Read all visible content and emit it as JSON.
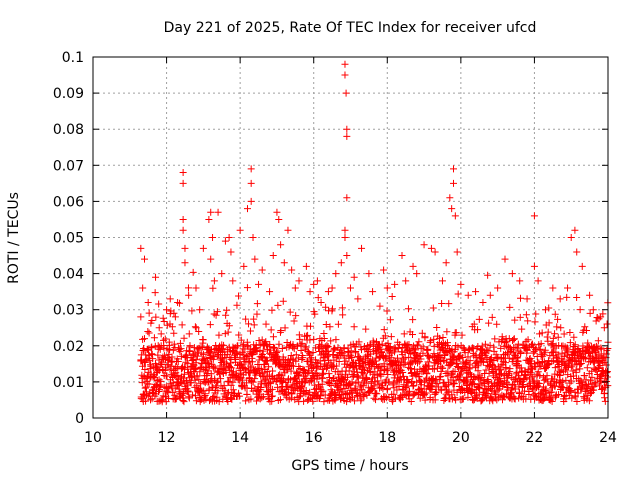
{
  "chart_data": {
    "type": "scatter",
    "title": "Day 221 of 2025, Rate Of TEC Index for receiver ufcd",
    "xlabel": "GPS time / hours",
    "ylabel": "ROTI / TECUs",
    "xlim": [
      10,
      24
    ],
    "ylim": [
      0,
      0.1
    ],
    "grid": true,
    "marker": "+",
    "color": "#ff0000",
    "xticks": [
      10,
      12,
      14,
      16,
      18,
      20,
      22,
      24
    ],
    "xtick_labels": [
      "10",
      "12",
      "14",
      "16",
      "18",
      "20",
      "22",
      "24"
    ],
    "yticks": [
      0,
      0.01,
      0.02,
      0.03,
      0.04,
      0.05,
      0.06,
      0.07,
      0.08,
      0.09,
      0.1
    ],
    "ytick_labels": [
      "0",
      "0.01",
      "0.02",
      "0.03",
      "0.04",
      "0.05",
      "0.06",
      "0.07",
      "0.08",
      "0.09",
      "0.1"
    ],
    "data_range": {
      "x_start": 11.3,
      "x_end": 24.0
    },
    "series": [
      {
        "name": "ROTI",
        "x": [
          11.3,
          11.3,
          11.35,
          11.4,
          11.4,
          11.5,
          11.6,
          11.7,
          11.8,
          12.0,
          12.1,
          12.2,
          12.3,
          12.45,
          12.45,
          12.45,
          12.45,
          12.5,
          12.5,
          12.6,
          12.8,
          12.9,
          13.0,
          13.15,
          13.2,
          13.2,
          13.25,
          13.3,
          13.4,
          13.5,
          13.6,
          13.7,
          13.75,
          13.8,
          14.0,
          14.1,
          14.2,
          14.3,
          14.3,
          14.3,
          14.35,
          14.4,
          14.5,
          14.6,
          14.8,
          14.9,
          15.0,
          15.05,
          15.1,
          15.2,
          15.3,
          15.4,
          15.5,
          15.6,
          15.8,
          15.9,
          16.0,
          16.1,
          16.2,
          16.4,
          16.5,
          16.6,
          16.75,
          16.85,
          16.85,
          16.88,
          16.9,
          16.9,
          16.9,
          16.85,
          16.85,
          16.9,
          17.0,
          17.1,
          17.2,
          17.3,
          17.5,
          17.6,
          17.8,
          17.9,
          18.0,
          18.2,
          18.4,
          18.5,
          18.7,
          18.8,
          19.0,
          19.2,
          19.3,
          19.5,
          19.6,
          19.7,
          19.75,
          19.8,
          19.8,
          19.85,
          19.9,
          20.0,
          20.2,
          20.4,
          20.6,
          20.8,
          21.0,
          21.2,
          21.4,
          21.6,
          21.8,
          22.0,
          22.0,
          22.1,
          22.3,
          22.5,
          22.7,
          22.9,
          23.0,
          23.1,
          23.15,
          23.3,
          23.5,
          23.6,
          23.8,
          23.9,
          24.0
        ],
        "y": [
          0.047,
          0.028,
          0.036,
          0.044,
          0.022,
          0.032,
          0.027,
          0.039,
          0.025,
          0.03,
          0.033,
          0.029,
          0.032,
          0.068,
          0.065,
          0.055,
          0.052,
          0.047,
          0.043,
          0.034,
          0.036,
          0.03,
          0.047,
          0.055,
          0.057,
          0.044,
          0.05,
          0.038,
          0.057,
          0.04,
          0.049,
          0.05,
          0.046,
          0.038,
          0.052,
          0.042,
          0.058,
          0.069,
          0.065,
          0.06,
          0.05,
          0.044,
          0.037,
          0.041,
          0.035,
          0.045,
          0.057,
          0.055,
          0.048,
          0.043,
          0.052,
          0.041,
          0.036,
          0.038,
          0.042,
          0.035,
          0.037,
          0.038,
          0.032,
          0.035,
          0.036,
          0.04,
          0.043,
          0.098,
          0.095,
          0.09,
          0.08,
          0.078,
          0.061,
          0.052,
          0.05,
          0.045,
          0.036,
          0.039,
          0.033,
          0.047,
          0.04,
          0.035,
          0.031,
          0.041,
          0.036,
          0.037,
          0.045,
          0.038,
          0.042,
          0.04,
          0.048,
          0.047,
          0.046,
          0.038,
          0.043,
          0.061,
          0.058,
          0.069,
          0.065,
          0.056,
          0.046,
          0.037,
          0.034,
          0.035,
          0.032,
          0.034,
          0.036,
          0.044,
          0.04,
          0.038,
          0.033,
          0.056,
          0.042,
          0.038,
          0.03,
          0.036,
          0.033,
          0.036,
          0.05,
          0.052,
          0.046,
          0.042,
          0.034,
          0.03,
          0.028,
          0.025,
          0.021
        ]
      }
    ]
  }
}
